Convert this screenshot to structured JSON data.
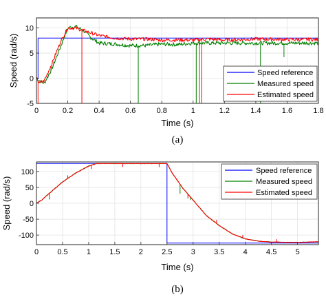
{
  "chart_data": [
    {
      "type": "line",
      "xlabel": "Time (s)",
      "ylabel": "Speed (rad/s)",
      "caption": "(a)",
      "xlim": [
        0,
        1.8
      ],
      "ylim": [
        -5,
        12
      ],
      "xticks": [
        "0",
        "0.2",
        "0.4",
        "0.6",
        "0.8",
        "1",
        "1.2",
        "1.4",
        "1.6",
        "1.8"
      ],
      "yticks": [
        "-5",
        "0",
        "5",
        "10"
      ],
      "grid": true,
      "legend_position": "bottom-right",
      "series": [
        {
          "name": "Speed reference",
          "color": "#0000ff",
          "x": [
            0,
            0.01,
            0.01,
            1.8
          ],
          "y": [
            0,
            0,
            8,
            8
          ]
        },
        {
          "name": "Measured speed",
          "color": "#008000",
          "x": [
            0,
            0.02,
            0.05,
            0.1,
            0.15,
            0.2,
            0.25,
            0.3,
            0.35,
            0.4,
            0.5,
            0.6,
            0.7,
            0.8,
            0.9,
            1.0,
            1.1,
            1.2,
            1.4,
            1.6,
            1.8
          ],
          "y": [
            0,
            -0.5,
            -1,
            2,
            6,
            10,
            10.3,
            9.5,
            8,
            7,
            6.8,
            6.5,
            6.5,
            6.8,
            6.7,
            7,
            7,
            7,
            7,
            7,
            7
          ],
          "spikes": [
            {
              "x": 0.65,
              "y": -5
            },
            {
              "x": 1.02,
              "y": -5
            },
            {
              "x": 1.43,
              "y": -5
            },
            {
              "x": 1.58,
              "y": 4.2
            }
          ]
        },
        {
          "name": "Estimated speed",
          "color": "#ff0000",
          "x": [
            0,
            0.02,
            0.05,
            0.1,
            0.15,
            0.2,
            0.25,
            0.3,
            0.35,
            0.4,
            0.5,
            0.6,
            0.7,
            0.8,
            0.9,
            1.0,
            1.1,
            1.2,
            1.4,
            1.6,
            1.8
          ],
          "y": [
            0,
            -1,
            -0.5,
            3,
            7,
            10,
            10,
            9.5,
            9,
            8.5,
            8,
            7.8,
            7.8,
            7.6,
            7.6,
            7.6,
            7.8,
            7.6,
            7.8,
            7.7,
            7.7
          ],
          "spikes": [
            {
              "x": 0.01,
              "y": -5
            },
            {
              "x": 0.29,
              "y": -5
            },
            {
              "x": 1.04,
              "y": -5
            },
            {
              "x": 1.055,
              "y": -5
            }
          ]
        }
      ]
    },
    {
      "type": "line",
      "xlabel": "Time (s)",
      "ylabel": "Speed (rad/s)",
      "caption": "(b)",
      "xlim": [
        0,
        5.4
      ],
      "ylim": [
        -130,
        130
      ],
      "xticks": [
        "0",
        "0.5",
        "1",
        "1.5",
        "2",
        "2.5",
        "3",
        "3.5",
        "4",
        "4.5",
        "5"
      ],
      "yticks": [
        "-100",
        "-50",
        "0",
        "50",
        "100"
      ],
      "grid": true,
      "legend_position": "top-right",
      "series": [
        {
          "name": "Speed reference",
          "color": "#0000ff",
          "x": [
            0,
            2.5,
            2.5,
            5.4
          ],
          "y": [
            125,
            125,
            -125,
            -125
          ]
        },
        {
          "name": "Measured speed",
          "color": "#008000",
          "x": [
            0,
            0.1,
            0.25,
            0.5,
            0.75,
            1.0,
            1.15,
            1.5,
            2.0,
            2.49,
            2.5,
            2.6,
            2.8,
            3.0,
            3.25,
            3.5,
            3.75,
            4.0,
            4.25,
            4.5,
            5.0,
            5.4
          ],
          "y": [
            0,
            10,
            32,
            67,
            95,
            117,
            125,
            125,
            125,
            125,
            125,
            95,
            48,
            10,
            -38,
            -70,
            -96,
            -112,
            -119,
            -122,
            -123,
            -121
          ],
          "spikes": [
            {
              "x": 0.25,
              "y": 12
            },
            {
              "x": 2.75,
              "y": 30
            },
            {
              "x": 2.95,
              "y": 10
            }
          ]
        },
        {
          "name": "Estimated speed",
          "color": "#ff0000",
          "x": [
            0,
            0.1,
            0.25,
            0.5,
            0.75,
            1.0,
            1.15,
            1.5,
            2.0,
            2.49,
            2.5,
            2.6,
            2.8,
            3.0,
            3.25,
            3.5,
            3.75,
            4.0,
            4.25,
            4.5,
            5.0,
            5.4
          ],
          "y": [
            0,
            10,
            32,
            67,
            95,
            117,
            125,
            125,
            125,
            125,
            125,
            95,
            48,
            10,
            -38,
            -70,
            -96,
            -112,
            -119,
            -122,
            -123,
            -121
          ],
          "spikes": [
            {
              "x": 0.6,
              "y": 88
            },
            {
              "x": 1.05,
              "y": 108
            },
            {
              "x": 1.65,
              "y": 114
            },
            {
              "x": 2.35,
              "y": 114
            },
            {
              "x": 2.9,
              "y": 15
            },
            {
              "x": 3.45,
              "y": -52
            },
            {
              "x": 3.95,
              "y": -100
            },
            {
              "x": 4.6,
              "y": -113
            }
          ]
        }
      ]
    }
  ]
}
